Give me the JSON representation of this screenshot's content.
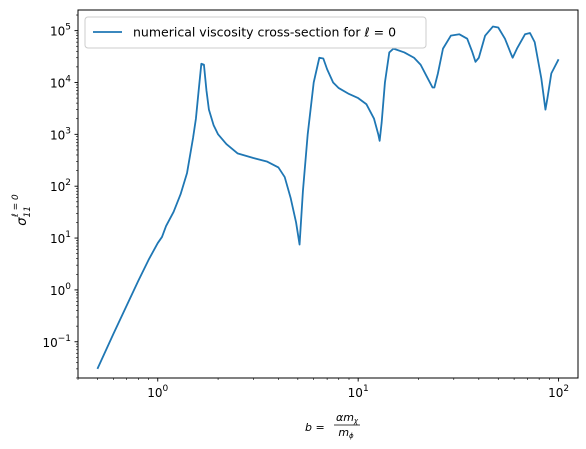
{
  "chart_data": {
    "type": "line",
    "xscale": "log",
    "yscale": "log",
    "xlim": [
      0.4,
      125
    ],
    "ylim": [
      0.02,
      250000
    ],
    "grid": false,
    "legend_position": "top-left",
    "x_ticks": [
      {
        "value": 1,
        "base": "10",
        "exp": "0"
      },
      {
        "value": 10,
        "base": "10",
        "exp": "1"
      },
      {
        "value": 100,
        "base": "10",
        "exp": "2"
      }
    ],
    "y_ticks": [
      {
        "value": 0.1,
        "base": "10",
        "exp": "−1"
      },
      {
        "value": 1,
        "base": "10",
        "exp": "0"
      },
      {
        "value": 10,
        "base": "10",
        "exp": "1"
      },
      {
        "value": 100,
        "base": "10",
        "exp": "2"
      },
      {
        "value": 1000,
        "base": "10",
        "exp": "3"
      },
      {
        "value": 10000,
        "base": "10",
        "exp": "4"
      },
      {
        "value": 100000,
        "base": "10",
        "exp": "5"
      }
    ],
    "xlabel": {
      "prefix": "b = ",
      "num": "αm",
      "num_sub": "χ",
      "den": "m",
      "den_sub": "ϕ"
    },
    "ylabel": {
      "main": "σ",
      "sub": "11",
      "sup": "ℓ = 0"
    },
    "series": [
      {
        "name": "numerical viscosity cross-section for ℓ = 0",
        "color": "#1f77b4",
        "points": [
          [
            0.5,
            0.03
          ],
          [
            0.6,
            0.14
          ],
          [
            0.7,
            0.5
          ],
          [
            0.8,
            1.5
          ],
          [
            0.9,
            3.8
          ],
          [
            1.0,
            8.0
          ],
          [
            1.05,
            10.5
          ],
          [
            1.1,
            17
          ],
          [
            1.2,
            32
          ],
          [
            1.3,
            70
          ],
          [
            1.4,
            180
          ],
          [
            1.5,
            850
          ],
          [
            1.55,
            2000
          ],
          [
            1.6,
            7000
          ],
          [
            1.65,
            23000
          ],
          [
            1.7,
            22000
          ],
          [
            1.75,
            7000
          ],
          [
            1.8,
            3000
          ],
          [
            1.9,
            1500
          ],
          [
            2.0,
            1000
          ],
          [
            2.2,
            650
          ],
          [
            2.5,
            430
          ],
          [
            3.0,
            350
          ],
          [
            3.5,
            300
          ],
          [
            4.0,
            230
          ],
          [
            4.3,
            150
          ],
          [
            4.6,
            60
          ],
          [
            4.9,
            20
          ],
          [
            5.1,
            7.5
          ],
          [
            5.3,
            80
          ],
          [
            5.6,
            1000
          ],
          [
            6.0,
            10000
          ],
          [
            6.4,
            30000
          ],
          [
            6.7,
            29000
          ],
          [
            7.0,
            18000
          ],
          [
            7.5,
            10000
          ],
          [
            8.0,
            7800
          ],
          [
            9.0,
            6000
          ],
          [
            10.0,
            5000
          ],
          [
            11.0,
            3800
          ],
          [
            12.0,
            2000
          ],
          [
            12.6,
            1000
          ],
          [
            12.8,
            750
          ],
          [
            13.1,
            1700
          ],
          [
            13.6,
            10000
          ],
          [
            14.3,
            38000
          ],
          [
            15.0,
            45000
          ],
          [
            17.0,
            38000
          ],
          [
            19.0,
            30000
          ],
          [
            20.5,
            22000
          ],
          [
            22.0,
            13000
          ],
          [
            23.5,
            8000
          ],
          [
            24.0,
            8000
          ],
          [
            25.0,
            15000
          ],
          [
            26.5,
            45000
          ],
          [
            29.0,
            80000
          ],
          [
            32.0,
            85000
          ],
          [
            35.0,
            70000
          ],
          [
            37.0,
            40000
          ],
          [
            38.5,
            25000
          ],
          [
            40.0,
            30000
          ],
          [
            43.0,
            80000
          ],
          [
            47.0,
            120000
          ],
          [
            50.0,
            115000
          ],
          [
            54.0,
            70000
          ],
          [
            58.0,
            35000
          ],
          [
            59.0,
            30000
          ],
          [
            62.0,
            45000
          ],
          [
            68.0,
            85000
          ],
          [
            72.0,
            90000
          ],
          [
            76.0,
            60000
          ],
          [
            82.0,
            12000
          ],
          [
            86.0,
            3000
          ],
          [
            88.0,
            5000
          ],
          [
            92.0,
            15000
          ],
          [
            100.0,
            28000
          ]
        ]
      }
    ]
  }
}
